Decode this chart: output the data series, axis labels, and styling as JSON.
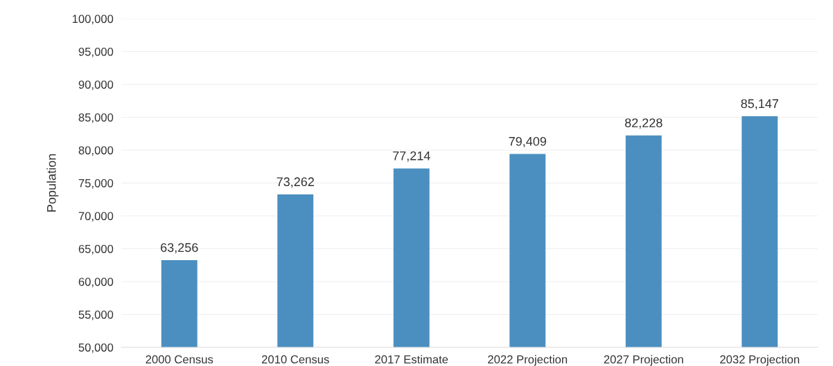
{
  "chart_data": {
    "type": "bar",
    "ylabel": "Population",
    "categories": [
      "2000 Census",
      "2010 Census",
      "2017 Estimate",
      "2022 Projection",
      "2027 Projection",
      "2032 Projection"
    ],
    "values": [
      63256,
      73262,
      77214,
      79409,
      82228,
      85147
    ],
    "value_labels": [
      "63,256",
      "73,262",
      "77,214",
      "79,409",
      "82,228",
      "85,147"
    ],
    "color": "#4b8fc0",
    "ylim": [
      50000,
      100000
    ],
    "yticks": [
      {
        "value": 50000,
        "label": "50,000"
      },
      {
        "value": 55000,
        "label": "55,000"
      },
      {
        "value": 60000,
        "label": "60,000"
      },
      {
        "value": 65000,
        "label": "65,000"
      },
      {
        "value": 70000,
        "label": "70,000"
      },
      {
        "value": 75000,
        "label": "75,000"
      },
      {
        "value": 80000,
        "label": "80,000"
      },
      {
        "value": 85000,
        "label": "85,000"
      },
      {
        "value": 90000,
        "label": "90,000"
      },
      {
        "value": 95000,
        "label": "95,000"
      },
      {
        "value": 100000,
        "label": "100,000"
      }
    ],
    "grid": "y"
  }
}
